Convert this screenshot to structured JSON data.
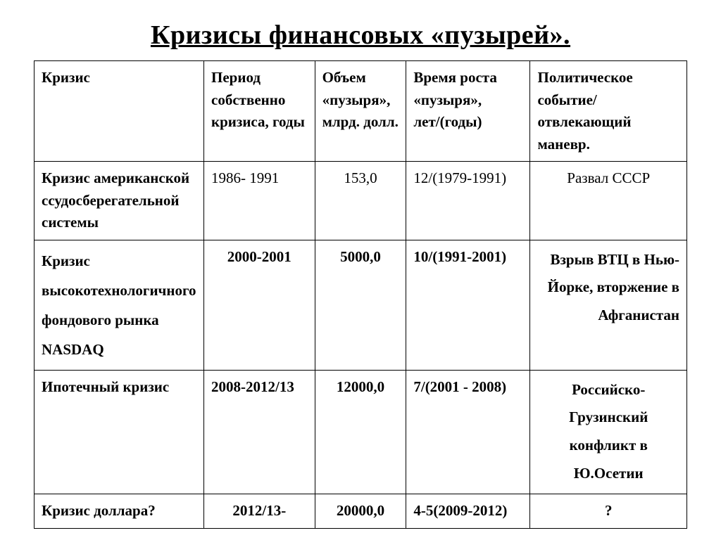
{
  "title": "Кризисы финансовых «пузырей».",
  "columns": [
    "Кризис",
    "Период собственно кризиса, годы",
    "Объем «пузыря», млрд. долл.",
    "Время роста «пузыря», лет/(годы)",
    "Политическое событие/ отвлекающий маневр."
  ],
  "rows": [
    {
      "crisis": "Кризис американской ссудосберегательной системы",
      "period": "1986- 1991",
      "volume": "153,0",
      "growth": "12/(1979-1991)",
      "event": "Развал СССР"
    },
    {
      "crisis": "Кризис высокотехнологичного фондового рынка NASDAQ",
      "period": "2000-2001",
      "volume": "5000,0",
      "growth": "10/(1991-2001)",
      "event": "Взрыв ВТЦ в Нью-Йорке, вторжение в Афганистан"
    },
    {
      "crisis": "Ипотечный кризис",
      "period": "2008-2012/13",
      "volume": "12000,0",
      "growth": "7/(2001 - 2008)",
      "event": "Российско-Грузинский конфликт в Ю.Осетии"
    },
    {
      "crisis": "Кризис доллара?",
      "period": "2012/13-",
      "volume": "20000,0",
      "growth": "4-5(2009-2012)",
      "event": "?"
    }
  ],
  "style": {
    "title_fontsize": 38,
    "cell_fontsize": 21,
    "border_color": "#000000",
    "background_color": "#ffffff",
    "text_color": "#000000",
    "font_family": "Times New Roman"
  }
}
